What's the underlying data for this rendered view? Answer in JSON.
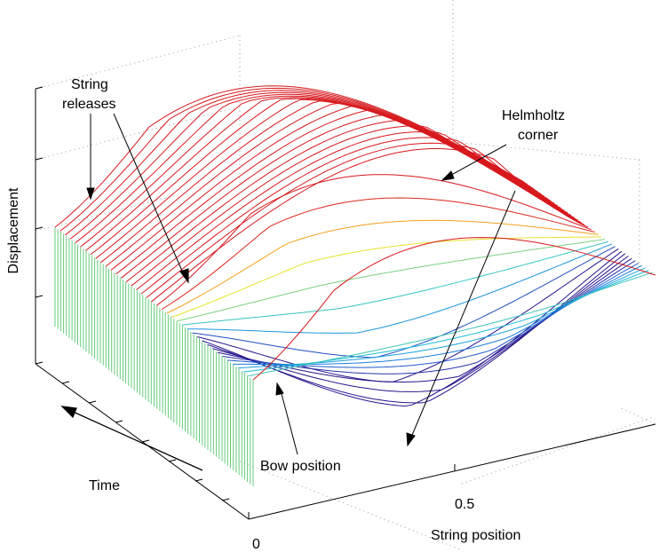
{
  "chart_data": {
    "type": "surface",
    "xlabel": "String position",
    "ylabel": "Time",
    "zlabel": "Displacement",
    "x_ticks": [
      "0",
      "0.5"
    ],
    "x_range": [
      0,
      1
    ],
    "grid": true,
    "surface": {
      "rows": 40,
      "series": [
        {
          "name": "",
          "amplitude_profile": "two periods of Helmholtz motion (sawtooth kink travelling along string)"
        }
      ]
    },
    "annotations": [
      {
        "text": "String releases"
      },
      {
        "text": "Helmholtz corner"
      },
      {
        "text": "Bow position"
      }
    ]
  },
  "annotation_lines": {
    "string_releases": [
      "String",
      "releases"
    ],
    "helmholtz": [
      "Helmholtz",
      "corner"
    ],
    "bow": "Bow position"
  },
  "colors": {
    "ridge_high": "#d81b1b",
    "mid": "#f5e51c",
    "low": "#19b9d8",
    "deep": "#2a1a8c",
    "end_wall": "#3fbf5a"
  }
}
